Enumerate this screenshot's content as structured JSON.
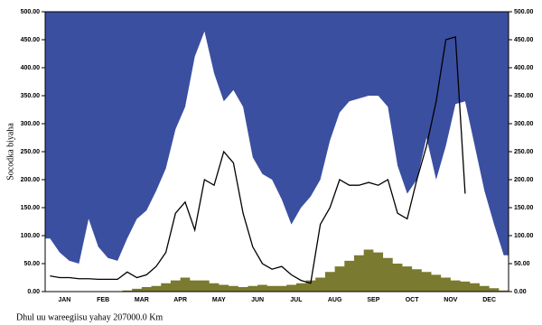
{
  "chart_data": {
    "type": "area-line",
    "y_label": "Socodka biyaha",
    "caption": "Dhul uu wareegiisu yahay 207000.0 Km",
    "categories": [
      null,
      null,
      "JAN",
      null,
      null,
      null,
      "FEB",
      null,
      null,
      null,
      "MAR",
      null,
      null,
      null,
      "APR",
      null,
      null,
      null,
      "MAY",
      null,
      null,
      null,
      "JUN",
      null,
      null,
      null,
      "JUL",
      null,
      null,
      null,
      "AUG",
      null,
      null,
      null,
      "SEP",
      null,
      null,
      null,
      "OCT",
      null,
      null,
      null,
      "NOV",
      null,
      null,
      null,
      "DEC",
      null
    ],
    "ylim": [
      0,
      500
    ],
    "yticks": [
      {
        "value": 0,
        "label": "0.00"
      },
      {
        "value": 50,
        "label": "50.00"
      },
      {
        "value": 100,
        "label": "100.00"
      },
      {
        "value": 150,
        "label": "150.00"
      },
      {
        "value": 200,
        "label": "200.00"
      },
      {
        "value": 250,
        "label": "250.00"
      },
      {
        "value": 300,
        "label": "300.00"
      },
      {
        "value": 350,
        "label": "350.00"
      },
      {
        "value": 400,
        "label": "400.00"
      },
      {
        "value": 450,
        "label": "450.00"
      },
      {
        "value": 500,
        "label": "500.00"
      }
    ],
    "series": [
      {
        "kind": "area-above",
        "color": "#3b4fa0",
        "values": [
          95,
          70,
          55,
          50,
          130,
          80,
          60,
          55,
          95,
          130,
          145,
          180,
          220,
          290,
          330,
          420,
          465,
          390,
          340,
          360,
          330,
          240,
          210,
          200,
          165,
          120,
          150,
          170,
          200,
          270,
          320,
          340,
          345,
          350,
          350,
          330,
          225,
          175,
          200,
          275,
          200,
          260,
          335,
          340,
          260,
          180,
          120,
          65
        ]
      },
      {
        "kind": "area",
        "color": "#7a7a30",
        "values": [
          0,
          0,
          0,
          0,
          0,
          0,
          0,
          0,
          2,
          5,
          8,
          10,
          15,
          20,
          25,
          20,
          20,
          15,
          12,
          10,
          8,
          10,
          12,
          10,
          10,
          12,
          15,
          20,
          25,
          35,
          45,
          55,
          65,
          75,
          70,
          60,
          50,
          45,
          40,
          35,
          30,
          25,
          20,
          18,
          15,
          10,
          6,
          2
        ]
      },
      {
        "kind": "line",
        "color": "#000000",
        "values": [
          28,
          25,
          25,
          23,
          23,
          22,
          22,
          22,
          35,
          25,
          30,
          45,
          70,
          140,
          160,
          110,
          200,
          190,
          250,
          230,
          140,
          80,
          50,
          40,
          45,
          30,
          20,
          15,
          120,
          150,
          200,
          190,
          190,
          195,
          190,
          200,
          140,
          130,
          200,
          260,
          340,
          450,
          455,
          175,
          null,
          null,
          null,
          null
        ]
      }
    ]
  }
}
